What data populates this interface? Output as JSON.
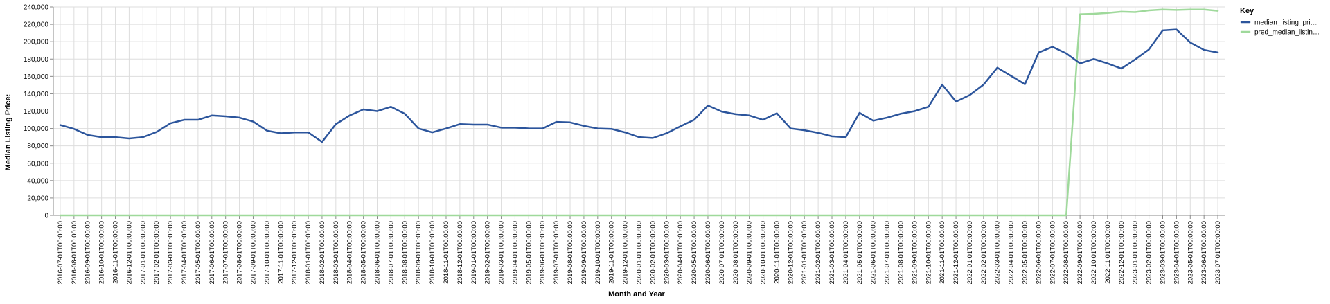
{
  "chart_data": {
    "type": "line",
    "xlabel": "Month and Year",
    "ylabel": "Median Listing Price:",
    "ylim": [
      0,
      240000
    ],
    "yticks": [
      0,
      20000,
      40000,
      60000,
      80000,
      100000,
      120000,
      140000,
      160000,
      180000,
      200000,
      220000,
      240000
    ],
    "ytick_labels": [
      "0",
      "20,000",
      "40,000",
      "60,000",
      "80,000",
      "100,000",
      "120,000",
      "140,000",
      "160,000",
      "180,000",
      "200,000",
      "220,000",
      "240,000"
    ],
    "grid": true,
    "legend_position": "right",
    "x": [
      "2016-07-01T00:00:00",
      "2016-08-01T00:00:00",
      "2016-09-01T00:00:00",
      "2016-10-01T00:00:00",
      "2016-11-01T00:00:00",
      "2016-12-01T00:00:00",
      "2017-01-01T00:00:00",
      "2017-02-01T00:00:00",
      "2017-03-01T00:00:00",
      "2017-04-01T00:00:00",
      "2017-05-01T00:00:00",
      "2017-06-01T00:00:00",
      "2017-07-01T00:00:00",
      "2017-08-01T00:00:00",
      "2017-09-01T00:00:00",
      "2017-10-01T00:00:00",
      "2017-11-01T00:00:00",
      "2017-12-01T00:00:00",
      "2018-01-01T00:00:00",
      "2018-02-01T00:00:00",
      "2018-03-01T00:00:00",
      "2018-04-01T00:00:00",
      "2018-05-01T00:00:00",
      "2018-06-01T00:00:00",
      "2018-07-01T00:00:00",
      "2018-08-01T00:00:00",
      "2018-09-01T00:00:00",
      "2018-10-01T00:00:00",
      "2018-11-01T00:00:00",
      "2018-12-01T00:00:00",
      "2019-01-01T00:00:00",
      "2019-02-01T00:00:00",
      "2019-03-01T00:00:00",
      "2019-04-01T00:00:00",
      "2019-05-01T00:00:00",
      "2019-06-01T00:00:00",
      "2019-07-01T00:00:00",
      "2019-08-01T00:00:00",
      "2019-09-01T00:00:00",
      "2019-10-01T00:00:00",
      "2019-11-01T00:00:00",
      "2019-12-01T00:00:00",
      "2020-01-01T00:00:00",
      "2020-02-01T00:00:00",
      "2020-03-01T00:00:00",
      "2020-04-01T00:00:00",
      "2020-05-01T00:00:00",
      "2020-06-01T00:00:00",
      "2020-07-01T00:00:00",
      "2020-08-01T00:00:00",
      "2020-09-01T00:00:00",
      "2020-10-01T00:00:00",
      "2020-11-01T00:00:00",
      "2020-12-01T00:00:00",
      "2021-01-01T00:00:00",
      "2021-02-01T00:00:00",
      "2021-03-01T00:00:00",
      "2021-04-01T00:00:00",
      "2021-05-01T00:00:00",
      "2021-06-01T00:00:00",
      "2021-07-01T00:00:00",
      "2021-08-01T00:00:00",
      "2021-09-01T00:00:00",
      "2021-10-01T00:00:00",
      "2021-11-01T00:00:00",
      "2021-12-01T00:00:00",
      "2022-01-01T00:00:00",
      "2022-02-01T00:00:00",
      "2022-03-01T00:00:00",
      "2022-04-01T00:00:00",
      "2022-05-01T00:00:00",
      "2022-06-01T00:00:00",
      "2022-07-01T00:00:00",
      "2022-08-01T00:00:00",
      "2022-09-01T00:00:00",
      "2022-10-01T00:00:00",
      "2022-11-01T00:00:00",
      "2022-12-01T00:00:00",
      "2023-01-01T00:00:00",
      "2023-02-01T00:00:00",
      "2023-03-01T00:00:00",
      "2023-04-01T00:00:00",
      "2023-05-01T00:00:00",
      "2023-06-01T00:00:00",
      "2023-07-01T00:00:00"
    ],
    "series": [
      {
        "name": "median_listing_pri…",
        "color": "#2c559c",
        "values": [
          104000,
          99500,
          92500,
          90000,
          90000,
          88500,
          90000,
          96000,
          106000,
          110000,
          110000,
          115000,
          114000,
          112500,
          108000,
          97500,
          94500,
          95500,
          95500,
          84500,
          105000,
          115000,
          122000,
          120000,
          125000,
          117000,
          100000,
          95500,
          100000,
          105000,
          104500,
          104500,
          101000,
          101000,
          100000,
          100000,
          107500,
          107000,
          103000,
          100000,
          99500,
          95500,
          90000,
          89000,
          94500,
          102500,
          110000,
          126500,
          119500,
          116500,
          115000,
          110000,
          117500,
          100000,
          98000,
          95000,
          91000,
          90000,
          118000,
          109000,
          112500,
          117000,
          120000,
          125000,
          150500,
          131000,
          138500,
          150500,
          170000,
          160500,
          151000,
          187500,
          194000,
          186500,
          175000,
          180000,
          175000,
          169000,
          179500,
          191000,
          213000,
          214000,
          199000,
          190500,
          187500
        ]
      },
      {
        "name": "pred_median_listin…",
        "color": "#9fd99b",
        "values": [
          0,
          0,
          0,
          0,
          0,
          0,
          0,
          0,
          0,
          0,
          0,
          0,
          0,
          0,
          0,
          0,
          0,
          0,
          0,
          0,
          0,
          0,
          0,
          0,
          0,
          0,
          0,
          0,
          0,
          0,
          0,
          0,
          0,
          0,
          0,
          0,
          0,
          0,
          0,
          0,
          0,
          0,
          0,
          0,
          0,
          0,
          0,
          0,
          0,
          0,
          0,
          0,
          0,
          0,
          0,
          0,
          0,
          0,
          0,
          0,
          0,
          0,
          0,
          0,
          0,
          0,
          0,
          0,
          0,
          0,
          0,
          0,
          0,
          0,
          231500,
          232000,
          233000,
          234500,
          234000,
          236000,
          237000,
          236500,
          237000,
          237000,
          235500
        ]
      }
    ]
  },
  "legend": {
    "title": "Key"
  }
}
